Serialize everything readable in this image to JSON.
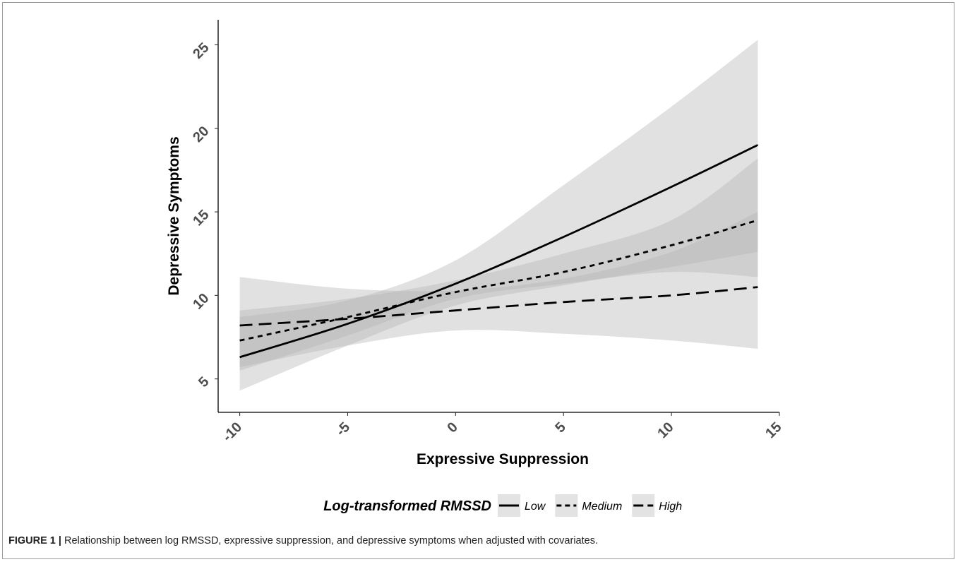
{
  "colors": {
    "band": "#b4b4b4",
    "line": "#000000",
    "tick_text": "#4d4d4d"
  },
  "caption": {
    "label": "FIGURE 1 |",
    "text": " Relationship between log RMSSD, expressive suppression, and depressive symptoms when adjusted with covariates."
  },
  "chart_data": {
    "type": "line",
    "xlabel": "Expressive Suppression",
    "ylabel": "Depressive Symptoms",
    "xlim": [
      -11,
      15
    ],
    "ylim": [
      3,
      26.5
    ],
    "xticks": [
      "-10",
      "-5",
      "0",
      "5",
      "10",
      "15"
    ],
    "yticks": [
      "5",
      "10",
      "15",
      "20",
      "25"
    ],
    "grid": false,
    "legend": {
      "title": "Log-transformed RMSSD",
      "placement": "bottom"
    },
    "series": [
      {
        "name": "Low",
        "style": "solid",
        "x": [
          -10,
          -5,
          0,
          5,
          10,
          14
        ],
        "y": [
          6.3,
          8.3,
          10.7,
          13.5,
          16.5,
          19.0
        ],
        "lower": [
          4.3,
          7.0,
          9.4,
          10.6,
          11.7,
          12.6
        ],
        "upper": [
          8.7,
          9.7,
          12.1,
          16.6,
          21.3,
          25.3
        ]
      },
      {
        "name": "Medium",
        "style": "dotted",
        "x": [
          -10,
          -5,
          0,
          5,
          10,
          14
        ],
        "y": [
          7.3,
          8.7,
          10.2,
          11.4,
          13.0,
          14.5
        ],
        "lower": [
          5.5,
          7.6,
          9.8,
          10.7,
          11.4,
          11.1
        ],
        "upper": [
          9.1,
          9.8,
          10.9,
          12.5,
          14.5,
          18.2
        ]
      },
      {
        "name": "High",
        "style": "dashed",
        "x": [
          -10,
          -5,
          0,
          5,
          10,
          14
        ],
        "y": [
          8.2,
          8.6,
          9.1,
          9.6,
          10.0,
          10.5
        ],
        "lower": [
          5.7,
          7.0,
          7.9,
          7.7,
          7.3,
          6.8
        ],
        "upper": [
          11.1,
          10.4,
          10.3,
          11.0,
          12.6,
          15.0
        ]
      }
    ]
  }
}
